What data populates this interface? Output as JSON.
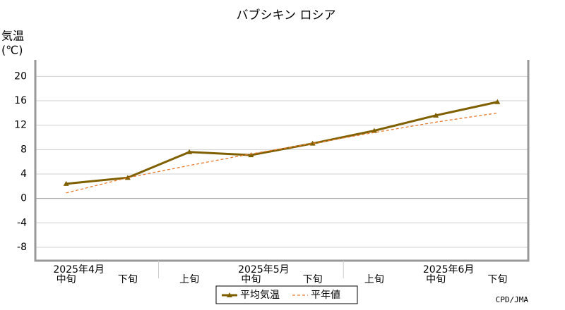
{
  "chart_data": {
    "type": "line",
    "title": "バブシキン ロシア",
    "y_label": "気温",
    "y_unit": "(℃)",
    "categories": [
      "中旬",
      "下旬",
      "上旬",
      "中旬",
      "下旬",
      "上旬",
      "中旬",
      "下旬"
    ],
    "month_labels": [
      "2025年4月",
      null,
      null,
      "2025年5月",
      null,
      null,
      "2025年6月",
      null
    ],
    "series": [
      {
        "name": "平均気温",
        "color": "#7f6000",
        "values": [
          2.4,
          3.4,
          7.6,
          7.1,
          9.0,
          11.1,
          13.6,
          15.8
        ]
      },
      {
        "name": "平年値",
        "color": "#e8792a",
        "dashed": true,
        "values": [
          0.9,
          3.4,
          5.4,
          7.3,
          9.0,
          10.8,
          12.5,
          14.0
        ]
      }
    ],
    "ylim": [
      -10.2,
      22.7
    ],
    "yticks": [
      -8,
      -4,
      0,
      4,
      8,
      12,
      16,
      20
    ],
    "grid": true,
    "source": "CPD/JMA"
  }
}
